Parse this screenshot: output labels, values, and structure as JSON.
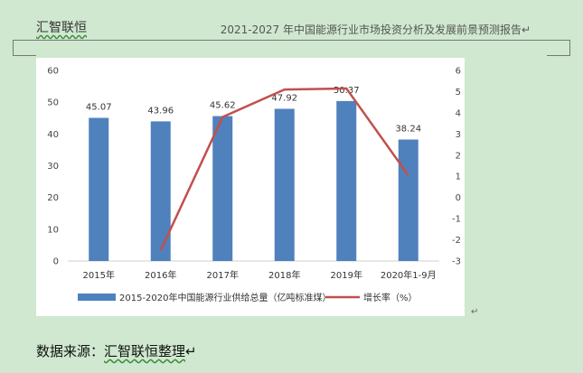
{
  "header": {
    "left": "汇智联恒",
    "right": "2021-2027 年中国能源行业市场投资分析及发展前景预测报告↵"
  },
  "footer": {
    "source_prefix": "数据来源：",
    "source_org": "汇智联恒整理",
    "return_mark": "↵"
  },
  "chart_data": {
    "type": "bar",
    "categories": [
      "2015年",
      "2016年",
      "2017年",
      "2018年",
      "2019年",
      "2020年1-9月"
    ],
    "series": [
      {
        "name": "2015-2020年中国能源行业供给总量（亿吨标准煤）",
        "type": "bar",
        "axis": "left",
        "color": "#4f81bd",
        "values": [
          45.07,
          43.96,
          45.62,
          47.92,
          50.37,
          38.24
        ],
        "labels": [
          "45.07",
          "43.96",
          "45.62",
          "47.92",
          "50.37",
          "38.24"
        ]
      },
      {
        "name": "增长率（%）",
        "type": "line",
        "axis": "right",
        "color": "#c0504d",
        "values": [
          null,
          -2.5,
          3.8,
          5.1,
          5.15,
          1.05
        ]
      }
    ],
    "y_left": {
      "min": 0,
      "max": 60,
      "step": 10,
      "ticks": [
        "0",
        "10",
        "20",
        "30",
        "40",
        "50",
        "60"
      ]
    },
    "y_right": {
      "min": -3,
      "max": 6,
      "step": 1,
      "ticks": [
        "-3",
        "-2",
        "-1",
        "0",
        "1",
        "2",
        "3",
        "4",
        "5",
        "6"
      ]
    },
    "grid": false,
    "legend_position": "bottom"
  }
}
